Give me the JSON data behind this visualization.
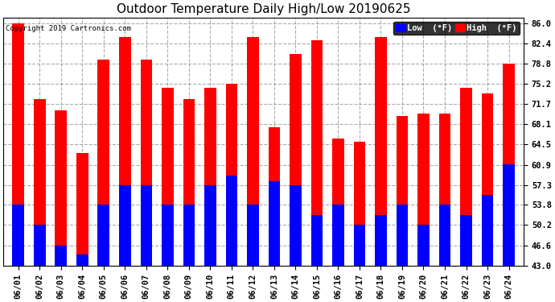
{
  "title": "Outdoor Temperature Daily High/Low 20190625",
  "copyright": "Copyright 2019 Cartronics.com",
  "dates": [
    "06/01",
    "06/02",
    "06/03",
    "06/04",
    "06/05",
    "06/06",
    "06/07",
    "06/08",
    "06/09",
    "06/10",
    "06/11",
    "06/12",
    "06/13",
    "06/14",
    "06/15",
    "06/16",
    "06/17",
    "06/18",
    "06/19",
    "06/20",
    "06/21",
    "06/22",
    "06/23",
    "06/24"
  ],
  "highs": [
    86.0,
    72.5,
    70.5,
    63.0,
    79.5,
    83.5,
    79.5,
    74.5,
    72.5,
    74.5,
    75.2,
    83.5,
    67.5,
    80.5,
    83.0,
    65.5,
    65.0,
    83.5,
    69.5,
    70.0,
    70.0,
    74.5,
    73.5,
    78.8
  ],
  "lows": [
    53.8,
    50.2,
    46.6,
    45.0,
    53.8,
    57.3,
    57.3,
    53.8,
    53.8,
    57.3,
    59.0,
    53.8,
    58.0,
    57.3,
    52.0,
    53.8,
    50.2,
    52.0,
    53.8,
    50.2,
    53.8,
    52.0,
    55.5,
    61.0
  ],
  "bar_color_high": "#ff0000",
  "bar_color_low": "#0000ff",
  "bg_color": "#ffffff",
  "plot_bg_color": "#ffffff",
  "grid_color": "#888888",
  "title_fontsize": 11,
  "tick_fontsize": 7.5,
  "yticks": [
    43.0,
    46.6,
    50.2,
    53.8,
    57.3,
    60.9,
    64.5,
    68.1,
    71.7,
    75.2,
    78.8,
    82.4,
    86.0
  ],
  "ylim": [
    43.0,
    87.0
  ],
  "ymin": 43.0,
  "legend_labels": [
    "Low  (°F)",
    "High  (°F)"
  ],
  "legend_colors": [
    "#0000ff",
    "#ff0000"
  ]
}
